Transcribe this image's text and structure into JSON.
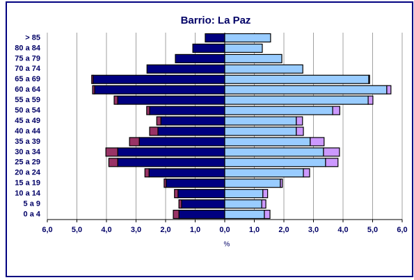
{
  "chart_data": {
    "type": "pyramid",
    "title": "Barrio: La Paz",
    "x_label": "%",
    "categories": [
      "0 a 4",
      "5 a 9",
      "10 a 14",
      "15 a 19",
      "20 a 24",
      "25 a 29",
      "30 a 34",
      "35 a 39",
      "40 a 44",
      "45 a 49",
      "50 a 54",
      "55 a 59",
      "60 a 64",
      "65 a 69",
      "70 a 74",
      "75 a 79",
      "80 a 84",
      "> 85"
    ],
    "series": [
      {
        "color": "#000080",
        "values": [
          -1.55,
          -1.46,
          -1.58,
          -1.98,
          -2.56,
          -3.62,
          -3.62,
          -2.89,
          -2.26,
          -2.16,
          -2.54,
          -3.62,
          -4.4,
          -4.45,
          -2.63,
          -1.67,
          -1.08,
          -0.66
        ]
      },
      {
        "color": "#993366",
        "values": [
          -0.19,
          -0.09,
          -0.12,
          -0.07,
          -0.14,
          -0.3,
          -0.4,
          -0.33,
          -0.28,
          -0.14,
          -0.1,
          -0.12,
          -0.07,
          -0.05,
          0,
          0,
          0,
          0
        ]
      },
      {
        "color": "#99ccff",
        "values": [
          1.34,
          1.25,
          1.29,
          1.88,
          2.66,
          3.41,
          3.34,
          2.89,
          2.42,
          2.42,
          3.65,
          4.85,
          5.48,
          4.87,
          2.64,
          1.93,
          1.27,
          1.55
        ]
      },
      {
        "color": "#cc99ff",
        "values": [
          0.19,
          0.14,
          0.16,
          0.07,
          0.21,
          0.42,
          0.54,
          0.47,
          0.24,
          0.21,
          0.24,
          0.16,
          0.14,
          0.03,
          0,
          0,
          0,
          0
        ]
      }
    ],
    "xlim": [
      -6,
      6
    ],
    "xticks": [
      {
        "value": -6,
        "label": "6,0"
      },
      {
        "value": -5,
        "label": "5,0"
      },
      {
        "value": -4,
        "label": "4,0"
      },
      {
        "value": -3,
        "label": "3,0"
      },
      {
        "value": -2,
        "label": "2,0"
      },
      {
        "value": -1,
        "label": "1,0"
      },
      {
        "value": 0,
        "label": "0,0"
      },
      {
        "value": 1,
        "label": "1,0"
      },
      {
        "value": 2,
        "label": "2,0"
      },
      {
        "value": 3,
        "label": "3,0"
      },
      {
        "value": 4,
        "label": "4,0"
      },
      {
        "value": 5,
        "label": "5,0"
      },
      {
        "value": 6,
        "label": "6,0"
      }
    ],
    "grid": true
  }
}
